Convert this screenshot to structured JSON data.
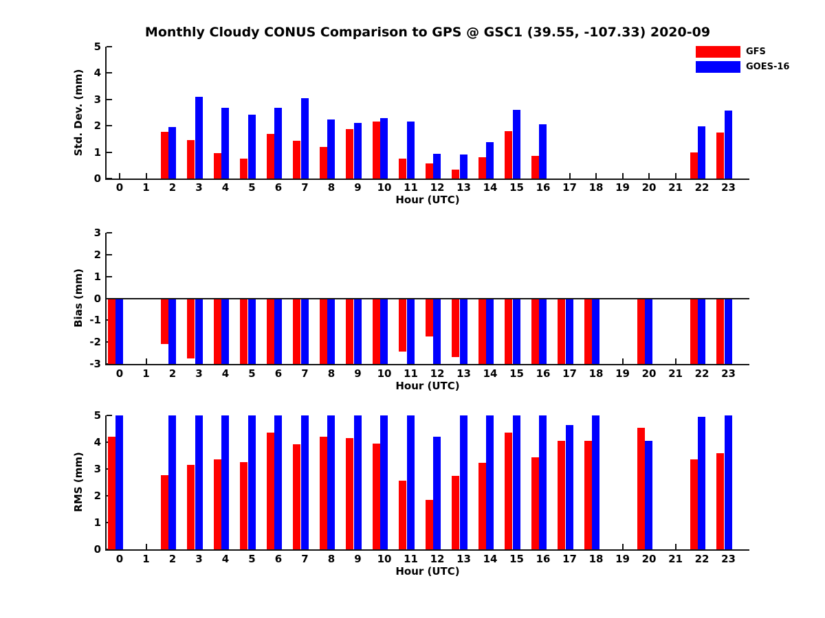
{
  "title": "Monthly Cloudy CONUS Comparison to GPS @ GSC1 (39.55, -107.33) 2020-09",
  "legend": {
    "items": [
      {
        "label": "GFS",
        "color": "#ff0000"
      },
      {
        "label": "GOES-16",
        "color": "#0000ff"
      }
    ],
    "position": "top-right"
  },
  "chart_data": [
    {
      "type": "bar",
      "name": "std-dev-by-hour",
      "ylabel": "Std. Dev. (mm)",
      "xlabel": "Hour (UTC)",
      "ylim": [
        0,
        5
      ],
      "yticks": [
        0,
        1,
        2,
        3,
        4,
        5
      ],
      "grid": false,
      "categories": [
        0,
        1,
        2,
        3,
        4,
        5,
        6,
        7,
        8,
        9,
        10,
        11,
        12,
        13,
        14,
        15,
        16,
        17,
        18,
        19,
        20,
        21,
        22,
        23
      ],
      "series": [
        {
          "name": "GFS",
          "color": "#ff0000",
          "values": [
            null,
            null,
            1.78,
            1.47,
            0.97,
            0.75,
            1.7,
            1.43,
            1.2,
            1.87,
            2.15,
            0.75,
            0.58,
            0.35,
            0.82,
            1.8,
            0.85,
            null,
            null,
            null,
            null,
            null,
            1.0,
            1.75
          ]
        },
        {
          "name": "GOES-16",
          "color": "#0000ff",
          "values": [
            null,
            null,
            1.95,
            3.1,
            2.67,
            2.43,
            2.67,
            3.05,
            2.25,
            2.1,
            2.28,
            2.15,
            0.95,
            0.9,
            1.38,
            2.6,
            2.05,
            null,
            null,
            null,
            null,
            null,
            1.97,
            2.57
          ]
        }
      ]
    },
    {
      "type": "bar",
      "name": "bias-by-hour",
      "ylabel": "Bias (mm)",
      "xlabel": "Hour (UTC)",
      "ylim": [
        -3,
        3
      ],
      "yticks": [
        3,
        2,
        1,
        0,
        -1,
        -2,
        -3
      ],
      "zero_line": true,
      "grid": false,
      "categories": [
        0,
        1,
        2,
        3,
        4,
        5,
        6,
        7,
        8,
        9,
        10,
        11,
        12,
        13,
        14,
        15,
        16,
        17,
        18,
        19,
        20,
        21,
        22,
        23
      ],
      "series": [
        {
          "name": "GFS",
          "color": "#ff0000",
          "values": [
            -3,
            null,
            -2.1,
            -2.75,
            -3,
            -3,
            -3,
            -3,
            -3,
            -3,
            -3,
            -2.45,
            -1.75,
            -2.7,
            -3,
            -3,
            -3,
            -3,
            -3,
            null,
            -3,
            null,
            -3,
            -3
          ]
        },
        {
          "name": "GOES-16",
          "color": "#0000ff",
          "values": [
            -3,
            null,
            -3,
            -3,
            -3,
            -3,
            -3,
            -3,
            -3,
            -3,
            -3,
            -3,
            -3,
            -3,
            -3,
            -3,
            -3,
            -3,
            -3,
            null,
            -3,
            null,
            -3,
            -3
          ]
        }
      ]
    },
    {
      "type": "bar",
      "name": "rms-by-hour",
      "ylabel": "RMS (mm)",
      "xlabel": "Hour (UTC)",
      "ylim": [
        0,
        5
      ],
      "yticks": [
        0,
        1,
        2,
        3,
        4,
        5
      ],
      "grid": false,
      "categories": [
        0,
        1,
        2,
        3,
        4,
        5,
        6,
        7,
        8,
        9,
        10,
        11,
        12,
        13,
        14,
        15,
        16,
        17,
        18,
        19,
        20,
        21,
        22,
        23
      ],
      "series": [
        {
          "name": "GFS",
          "color": "#ff0000",
          "values": [
            4.2,
            null,
            2.78,
            3.15,
            3.35,
            3.25,
            4.35,
            3.93,
            4.2,
            4.15,
            3.95,
            2.57,
            1.85,
            2.74,
            3.22,
            4.37,
            3.44,
            4.06,
            4.06,
            null,
            4.53,
            null,
            3.36,
            3.59
          ]
        },
        {
          "name": "GOES-16",
          "color": "#0000ff",
          "values": [
            5,
            null,
            5,
            5,
            5,
            5,
            5,
            5,
            5,
            5,
            5,
            5,
            4.2,
            5,
            5,
            5,
            5,
            4.65,
            5,
            null,
            4.06,
            null,
            4.95,
            5
          ]
        }
      ]
    }
  ]
}
